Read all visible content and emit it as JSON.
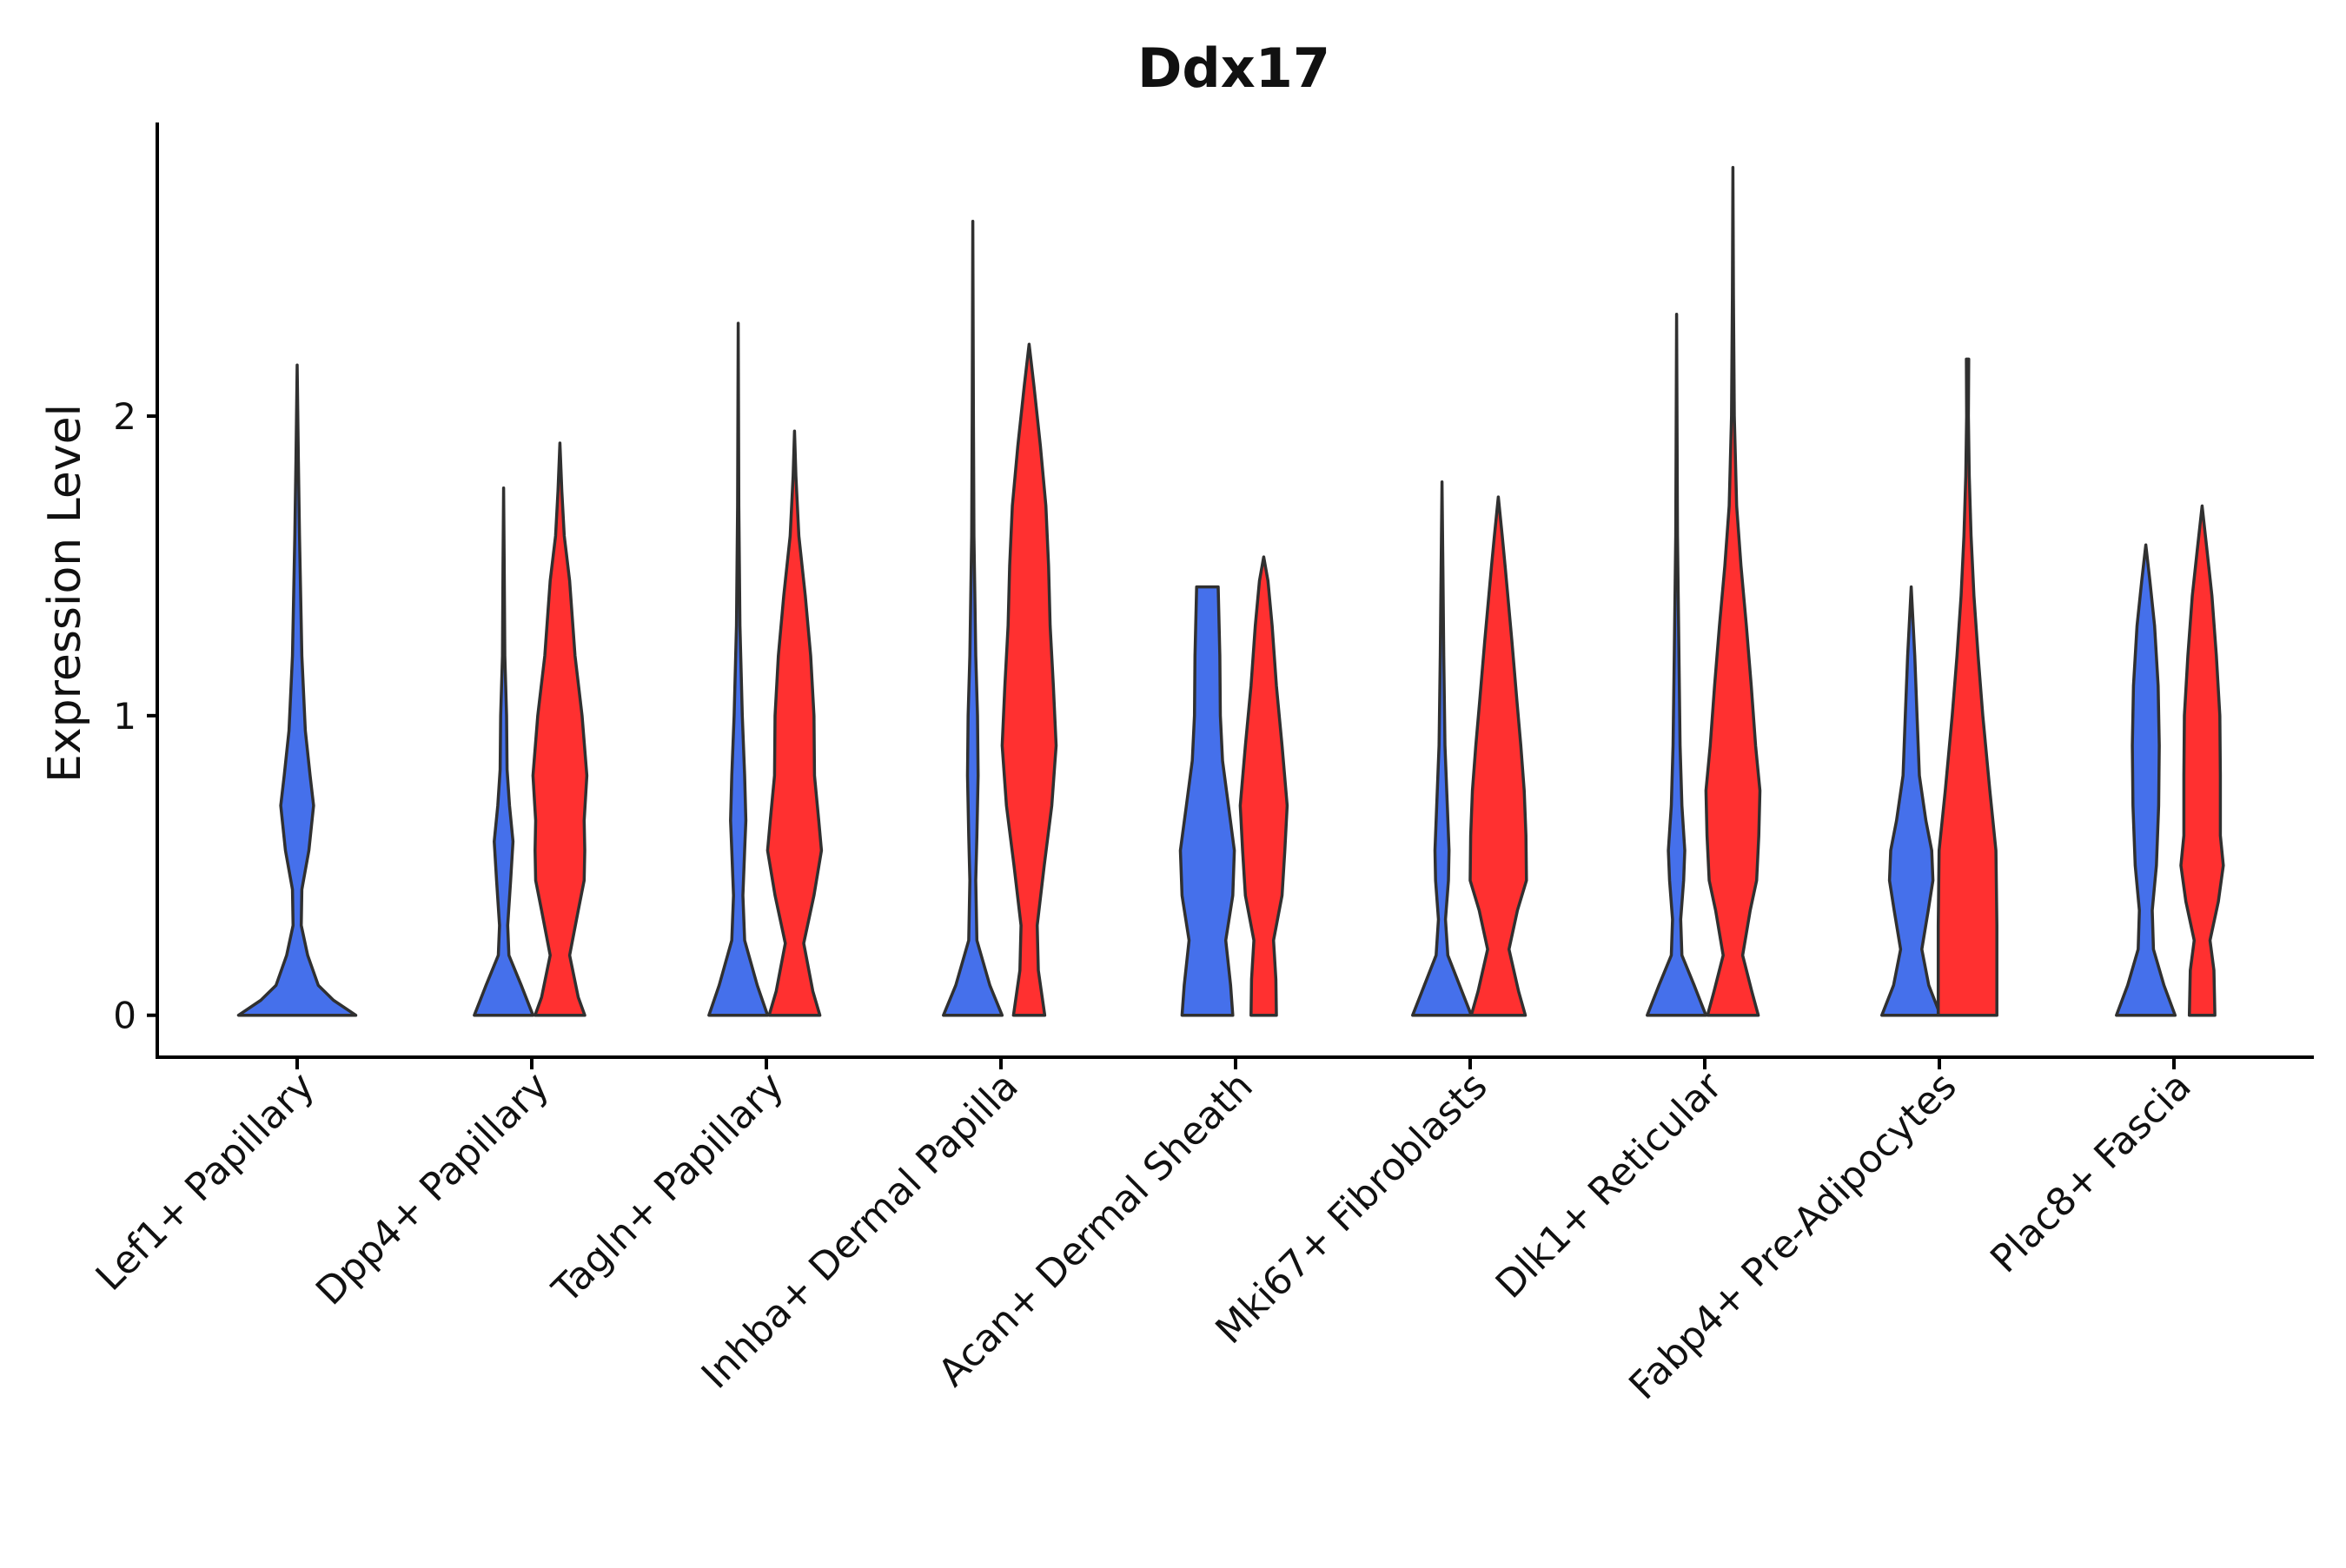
{
  "chart_data": {
    "type": "violin",
    "title": "Ddx17",
    "xlabel": "",
    "ylabel": "Expression Level",
    "ylim": [
      -0.14,
      2.98
    ],
    "yticks": [
      0,
      1,
      2
    ],
    "grid": false,
    "legend": "none",
    "colors": {
      "a": "#4570EB",
      "b": "#FF3030",
      "outline": "#303030"
    },
    "categories": [
      "Lef1+ Papillary",
      "Dpp4+ Papillary",
      "Tagln+ Papillary",
      "Inhba+ Dermal Papilla",
      "Acan+ Dermal Sheath",
      "Mki67+ Fibroblasts",
      "Dlk1+ Reticular",
      "Fabp4+ Pre-Adipocytes",
      "Plac8+ Fascia"
    ],
    "violins": [
      {
        "category": 0,
        "group": "a",
        "offset": 0,
        "maxWidth": 1.0,
        "profile": [
          [
            0,
            1.0
          ],
          [
            0.05,
            0.62
          ],
          [
            0.1,
            0.36
          ],
          [
            0.2,
            0.18
          ],
          [
            0.3,
            0.07
          ],
          [
            0.42,
            0.08
          ],
          [
            0.55,
            0.2
          ],
          [
            0.7,
            0.28
          ],
          [
            0.8,
            0.22
          ],
          [
            0.95,
            0.14
          ],
          [
            1.2,
            0.08
          ],
          [
            1.6,
            0.04
          ],
          [
            1.85,
            0.02
          ],
          [
            2.17,
            0
          ]
        ]
      },
      {
        "category": 1,
        "group": "a",
        "offset": -0.24,
        "maxWidth": 0.5,
        "profile": [
          [
            0,
            1.0
          ],
          [
            0.1,
            0.6
          ],
          [
            0.2,
            0.18
          ],
          [
            0.3,
            0.14
          ],
          [
            0.45,
            0.24
          ],
          [
            0.58,
            0.32
          ],
          [
            0.7,
            0.2
          ],
          [
            0.82,
            0.12
          ],
          [
            1.0,
            0.1
          ],
          [
            1.2,
            0.04
          ],
          [
            1.5,
            0.02
          ],
          [
            1.76,
            0
          ]
        ]
      },
      {
        "category": 1,
        "group": "b",
        "offset": 0.24,
        "maxWidth": 0.46,
        "profile": [
          [
            0,
            0.92
          ],
          [
            0.06,
            0.68
          ],
          [
            0.2,
            0.36
          ],
          [
            0.35,
            0.68
          ],
          [
            0.45,
            0.9
          ],
          [
            0.55,
            0.92
          ],
          [
            0.65,
            0.9
          ],
          [
            0.8,
            1.0
          ],
          [
            1.0,
            0.82
          ],
          [
            1.2,
            0.56
          ],
          [
            1.45,
            0.36
          ],
          [
            1.6,
            0.16
          ],
          [
            1.75,
            0.07
          ],
          [
            1.91,
            0
          ]
        ]
      },
      {
        "category": 2,
        "group": "a",
        "offset": -0.24,
        "maxWidth": 0.5,
        "profile": [
          [
            0,
            1.0
          ],
          [
            0.1,
            0.65
          ],
          [
            0.25,
            0.22
          ],
          [
            0.4,
            0.16
          ],
          [
            0.55,
            0.22
          ],
          [
            0.65,
            0.26
          ],
          [
            0.8,
            0.22
          ],
          [
            1.0,
            0.14
          ],
          [
            1.3,
            0.06
          ],
          [
            1.7,
            0.02
          ],
          [
            2.31,
            0
          ]
        ]
      },
      {
        "category": 2,
        "group": "b",
        "offset": 0.24,
        "maxWidth": 0.46,
        "profile": [
          [
            0,
            0.94
          ],
          [
            0.08,
            0.68
          ],
          [
            0.24,
            0.34
          ],
          [
            0.4,
            0.72
          ],
          [
            0.55,
            1.0
          ],
          [
            0.65,
            0.9
          ],
          [
            0.8,
            0.74
          ],
          [
            1.0,
            0.72
          ],
          [
            1.2,
            0.6
          ],
          [
            1.4,
            0.4
          ],
          [
            1.6,
            0.16
          ],
          [
            1.8,
            0.05
          ],
          [
            1.95,
            0
          ]
        ]
      },
      {
        "category": 3,
        "group": "a",
        "offset": -0.24,
        "maxWidth": 0.5,
        "profile": [
          [
            0,
            1.0
          ],
          [
            0.1,
            0.58
          ],
          [
            0.25,
            0.14
          ],
          [
            0.45,
            0.1
          ],
          [
            0.6,
            0.14
          ],
          [
            0.8,
            0.18
          ],
          [
            1.0,
            0.16
          ],
          [
            1.2,
            0.1
          ],
          [
            1.6,
            0.04
          ],
          [
            2.0,
            0.02
          ],
          [
            2.65,
            0
          ]
        ]
      },
      {
        "category": 3,
        "group": "b",
        "offset": 0.24,
        "maxWidth": 0.46,
        "profile": [
          [
            0,
            0.58
          ],
          [
            0.15,
            0.34
          ],
          [
            0.3,
            0.3
          ],
          [
            0.5,
            0.56
          ],
          [
            0.7,
            0.84
          ],
          [
            0.9,
            1.0
          ],
          [
            1.1,
            0.9
          ],
          [
            1.3,
            0.78
          ],
          [
            1.5,
            0.72
          ],
          [
            1.7,
            0.62
          ],
          [
            1.9,
            0.42
          ],
          [
            2.1,
            0.18
          ],
          [
            2.24,
            0
          ]
        ]
      },
      {
        "category": 4,
        "group": "a",
        "offset": -0.24,
        "maxWidth": 0.46,
        "profile": [
          [
            0,
            0.94
          ],
          [
            0.1,
            0.86
          ],
          [
            0.25,
            0.68
          ],
          [
            0.4,
            0.94
          ],
          [
            0.55,
            1.0
          ],
          [
            0.7,
            0.78
          ],
          [
            0.85,
            0.56
          ],
          [
            1.0,
            0.48
          ],
          [
            1.2,
            0.46
          ],
          [
            1.43,
            0.4
          ]
        ]
      },
      {
        "category": 4,
        "group": "b",
        "offset": 0.24,
        "maxWidth": 0.4,
        "profile": [
          [
            0,
            0.54
          ],
          [
            0.12,
            0.52
          ],
          [
            0.25,
            0.42
          ],
          [
            0.4,
            0.78
          ],
          [
            0.55,
            0.9
          ],
          [
            0.7,
            1.0
          ],
          [
            0.9,
            0.78
          ],
          [
            1.1,
            0.54
          ],
          [
            1.3,
            0.36
          ],
          [
            1.45,
            0.18
          ],
          [
            1.53,
            0
          ]
        ]
      },
      {
        "category": 5,
        "group": "a",
        "offset": -0.24,
        "maxWidth": 0.5,
        "profile": [
          [
            0,
            1.0
          ],
          [
            0.1,
            0.6
          ],
          [
            0.2,
            0.2
          ],
          [
            0.32,
            0.12
          ],
          [
            0.45,
            0.22
          ],
          [
            0.55,
            0.24
          ],
          [
            0.7,
            0.18
          ],
          [
            0.9,
            0.1
          ],
          [
            1.2,
            0.06
          ],
          [
            1.5,
            0.03
          ],
          [
            1.78,
            0
          ]
        ]
      },
      {
        "category": 5,
        "group": "b",
        "offset": 0.24,
        "maxWidth": 0.48,
        "profile": [
          [
            0,
            0.96
          ],
          [
            0.08,
            0.72
          ],
          [
            0.22,
            0.38
          ],
          [
            0.35,
            0.68
          ],
          [
            0.45,
            1.0
          ],
          [
            0.6,
            0.98
          ],
          [
            0.75,
            0.92
          ],
          [
            0.9,
            0.8
          ],
          [
            1.05,
            0.66
          ],
          [
            1.25,
            0.48
          ],
          [
            1.5,
            0.24
          ],
          [
            1.6,
            0.14
          ],
          [
            1.73,
            0
          ]
        ]
      },
      {
        "category": 6,
        "group": "a",
        "offset": -0.24,
        "maxWidth": 0.5,
        "profile": [
          [
            0,
            1.0
          ],
          [
            0.1,
            0.6
          ],
          [
            0.2,
            0.18
          ],
          [
            0.32,
            0.14
          ],
          [
            0.45,
            0.24
          ],
          [
            0.55,
            0.28
          ],
          [
            0.7,
            0.18
          ],
          [
            0.9,
            0.12
          ],
          [
            1.2,
            0.08
          ],
          [
            1.6,
            0.03
          ],
          [
            2.34,
            0
          ]
        ]
      },
      {
        "category": 6,
        "group": "b",
        "offset": 0.24,
        "maxWidth": 0.46,
        "profile": [
          [
            0,
            0.94
          ],
          [
            0.08,
            0.7
          ],
          [
            0.2,
            0.36
          ],
          [
            0.35,
            0.64
          ],
          [
            0.45,
            0.88
          ],
          [
            0.6,
            0.96
          ],
          [
            0.75,
            1.0
          ],
          [
            0.9,
            0.84
          ],
          [
            1.1,
            0.68
          ],
          [
            1.3,
            0.5
          ],
          [
            1.5,
            0.3
          ],
          [
            1.7,
            0.14
          ],
          [
            2.0,
            0.05
          ],
          [
            2.4,
            0.02
          ],
          [
            2.83,
            0
          ]
        ]
      },
      {
        "category": 7,
        "group": "a",
        "offset": -0.24,
        "maxWidth": 0.5,
        "profile": [
          [
            0,
            1.0
          ],
          [
            0.1,
            0.6
          ],
          [
            0.22,
            0.36
          ],
          [
            0.35,
            0.58
          ],
          [
            0.45,
            0.74
          ],
          [
            0.55,
            0.7
          ],
          [
            0.65,
            0.5
          ],
          [
            0.8,
            0.28
          ],
          [
            1.0,
            0.2
          ],
          [
            1.2,
            0.12
          ],
          [
            1.43,
            0
          ]
        ]
      },
      {
        "category": 7,
        "group": "b",
        "offset": 0.24,
        "maxWidth": 0.5,
        "profile": [
          [
            0,
            1.0
          ],
          [
            0.3,
            1.0
          ],
          [
            0.55,
            0.97
          ],
          [
            0.75,
            0.76
          ],
          [
            1.0,
            0.52
          ],
          [
            1.2,
            0.36
          ],
          [
            1.4,
            0.22
          ],
          [
            1.6,
            0.12
          ],
          [
            1.8,
            0.06
          ],
          [
            2.0,
            0.03
          ],
          [
            2.19,
            0.04
          ]
        ]
      },
      {
        "category": 8,
        "group": "a",
        "offset": -0.24,
        "maxWidth": 0.5,
        "profile": [
          [
            0,
            1.0
          ],
          [
            0.1,
            0.62
          ],
          [
            0.22,
            0.26
          ],
          [
            0.35,
            0.22
          ],
          [
            0.5,
            0.36
          ],
          [
            0.7,
            0.44
          ],
          [
            0.9,
            0.46
          ],
          [
            1.1,
            0.42
          ],
          [
            1.3,
            0.3
          ],
          [
            1.45,
            0.14
          ],
          [
            1.57,
            0
          ]
        ]
      },
      {
        "category": 8,
        "group": "b",
        "offset": 0.24,
        "maxWidth": 0.42,
        "profile": [
          [
            0,
            0.52
          ],
          [
            0.15,
            0.48
          ],
          [
            0.25,
            0.32
          ],
          [
            0.38,
            0.66
          ],
          [
            0.5,
            0.86
          ],
          [
            0.6,
            0.74
          ],
          [
            0.8,
            0.74
          ],
          [
            1.0,
            0.72
          ],
          [
            1.2,
            0.58
          ],
          [
            1.4,
            0.4
          ],
          [
            1.55,
            0.2
          ],
          [
            1.7,
            0
          ]
        ]
      }
    ]
  }
}
